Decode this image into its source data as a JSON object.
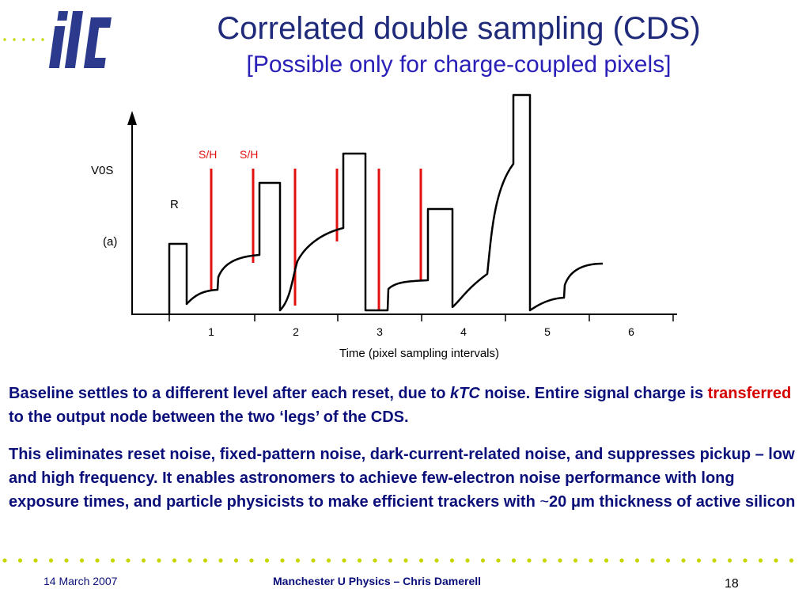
{
  "header": {
    "title": "Correlated double sampling (CDS)",
    "subtitle": "[Possible only for charge-coupled pixels]"
  },
  "logo": {
    "text": "ilc",
    "colors": {
      "blue": "#2b3a8c",
      "dots": "#c7d600"
    }
  },
  "figure": {
    "labels": {
      "y_axis": "V0S",
      "panel": "(a)",
      "reset": "R",
      "sample_hold_1": "S/H",
      "sample_hold_2": "S/H",
      "x_axis": "Time (pixel sampling intervals)"
    },
    "x_ticks": [
      "1",
      "2",
      "3",
      "4",
      "5",
      "6"
    ],
    "colors": {
      "waveform": "#000000",
      "markers": "#e31010",
      "label_red": "#e31010"
    }
  },
  "body": {
    "p1": {
      "a": "Baseline settles to a different level after each reset, due to ",
      "b": "kTC",
      "c": "  noise.  Entire signal charge is ",
      "d": "transferred",
      "e": " to the output node between the two ‘legs’ of the CDS."
    },
    "p2": {
      "a": "This eliminates reset noise, fixed-pattern noise, dark-current-related noise, and suppresses pickup – low and high frequency.  It enables astronomers to achieve few-electron noise performance with long exposure times, and particle physicists to make efficient trackers with ",
      "b": "~",
      "c": "20 ",
      "d": "μ",
      "e": "m thickness of active silicon"
    }
  },
  "footer": {
    "date": "14 March 2007",
    "center": "Manchester U Physics   – Chris Damerell",
    "page": "18"
  },
  "colors": {
    "title": "#1f2a7a",
    "subtitle": "#2a20b8",
    "body": "#0b0f7a",
    "highlight": "#d50000",
    "dots": "#c7d600"
  }
}
